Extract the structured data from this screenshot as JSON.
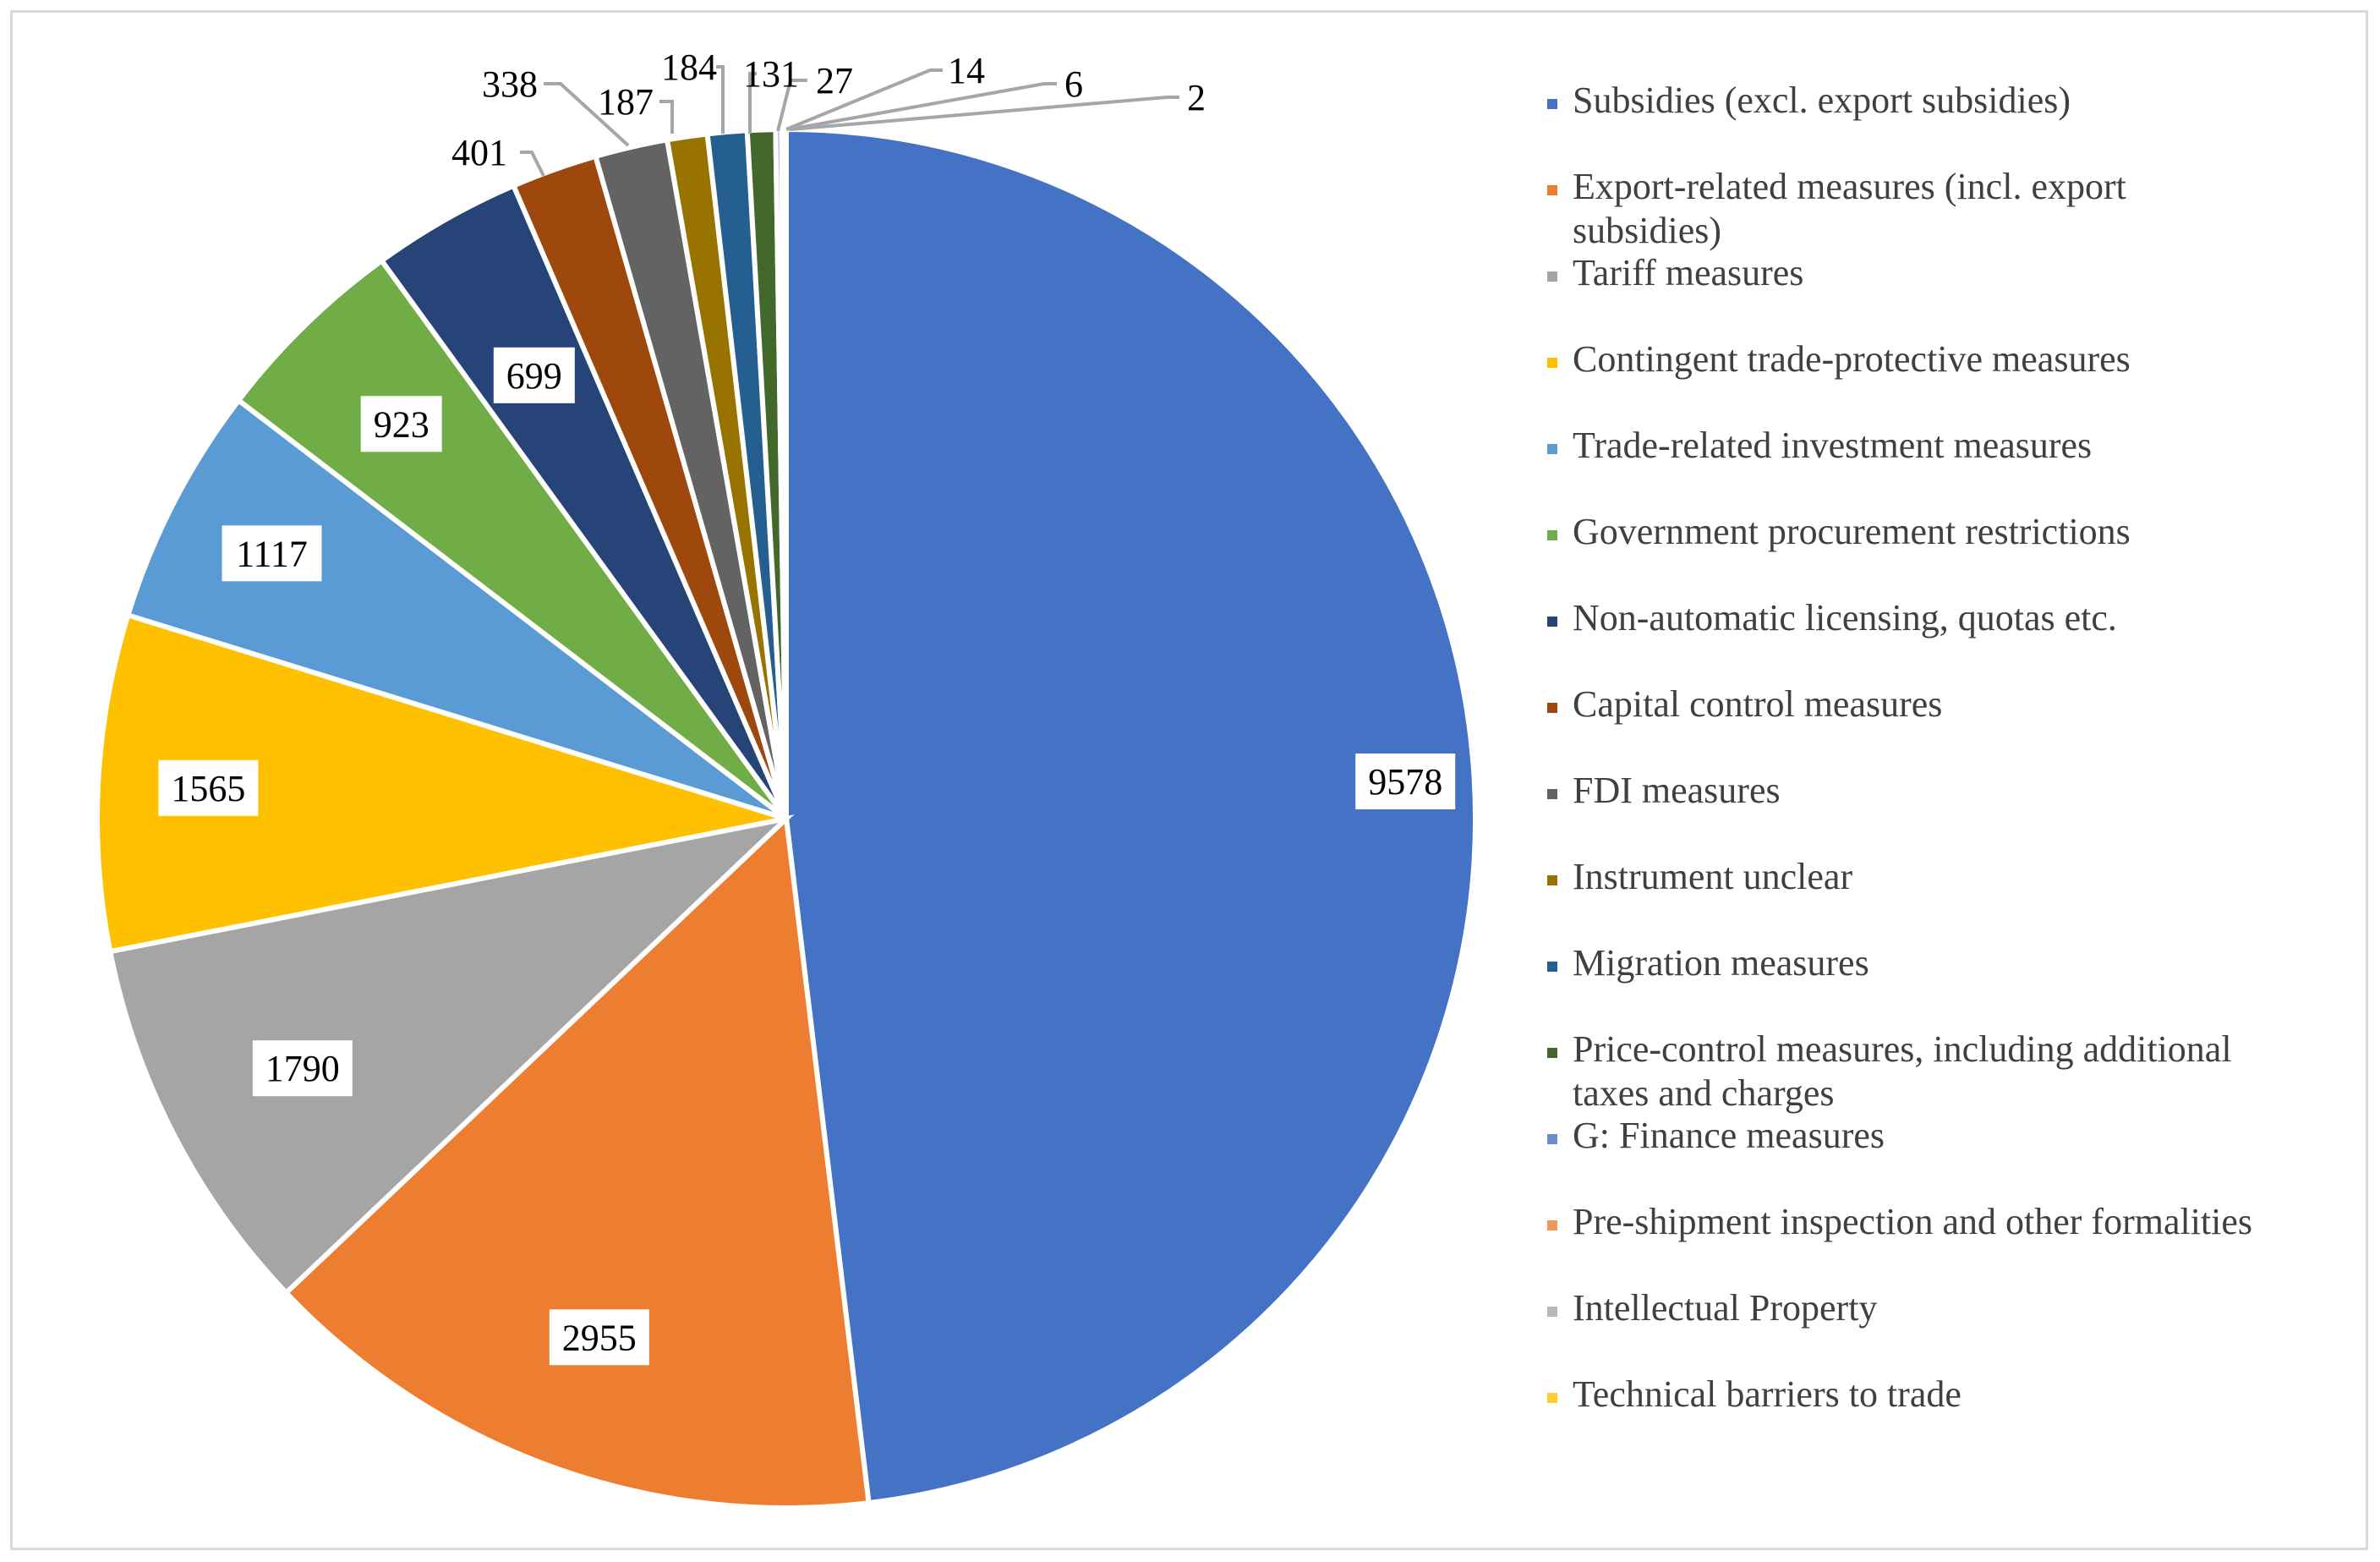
{
  "chart_data": {
    "type": "pie",
    "title": "",
    "legend_position": "right",
    "slices": [
      {
        "label": "Subsidies (excl. export subsidies)",
        "legend_lines": [
          "Subsidies (excl. export subsidies)"
        ],
        "value": 9578,
        "value_text": "9578",
        "color": "#4472C4"
      },
      {
        "label": "Export-related measures (incl. export subsidies)",
        "legend_lines": [
          "Export-related measures (incl. export",
          "subsidies)"
        ],
        "value": 2955,
        "value_text": "2955",
        "color": "#ED7D31"
      },
      {
        "label": "Tariff measures",
        "legend_lines": [
          "Tariff measures"
        ],
        "value": 1790,
        "value_text": "1790",
        "color": "#A5A5A5"
      },
      {
        "label": "Contingent trade-protective measures",
        "legend_lines": [
          "Contingent trade-protective measures"
        ],
        "value": 1565,
        "value_text": "1565",
        "color": "#FFC000"
      },
      {
        "label": "Trade-related investment measures",
        "legend_lines": [
          "Trade-related investment measures"
        ],
        "value": 1117,
        "value_text": "1117",
        "color": "#5B9BD5"
      },
      {
        "label": "Government procurement restrictions",
        "legend_lines": [
          "Government procurement restrictions"
        ],
        "value": 923,
        "value_text": "923",
        "color": "#70AD47"
      },
      {
        "label": "Non-automatic licensing, quotas etc.",
        "legend_lines": [
          "Non-automatic licensing, quotas etc."
        ],
        "value": 699,
        "value_text": "699",
        "color": "#264478"
      },
      {
        "label": "Capital control measures",
        "legend_lines": [
          "Capital control measures"
        ],
        "value": 401,
        "value_text": "401",
        "color": "#9E480E"
      },
      {
        "label": "FDI measures",
        "legend_lines": [
          "FDI measures"
        ],
        "value": 338,
        "value_text": "338",
        "color": "#636363"
      },
      {
        "label": "Instrument unclear",
        "legend_lines": [
          "Instrument unclear"
        ],
        "value": 187,
        "value_text": "187",
        "color": "#997300"
      },
      {
        "label": "Migration measures",
        "legend_lines": [
          "Migration measures"
        ],
        "value": 184,
        "value_text": "184",
        "color": "#255E91"
      },
      {
        "label": "Price-control measures, including additional taxes and charges",
        "legend_lines": [
          "Price-control measures, including additional",
          "taxes and charges"
        ],
        "value": 131,
        "value_text": "131",
        "color": "#43682B"
      },
      {
        "label": "G: Finance measures",
        "legend_lines": [
          "G: Finance measures"
        ],
        "value": 27,
        "value_text": "27",
        "color": "#698ED0"
      },
      {
        "label": "Pre-shipment inspection and other formalities",
        "legend_lines": [
          "Pre-shipment inspection and other formalities"
        ],
        "value": 14,
        "value_text": "14",
        "color": "#F1975A"
      },
      {
        "label": "Intellectual Property",
        "legend_lines": [
          "Intellectual Property"
        ],
        "value": 6,
        "value_text": "6",
        "color": "#B7B7B7"
      },
      {
        "label": "Technical barriers to trade",
        "legend_lines": [
          "Technical barriers to trade"
        ],
        "value": 2,
        "value_text": "2",
        "color": "#FFCD33"
      }
    ]
  }
}
